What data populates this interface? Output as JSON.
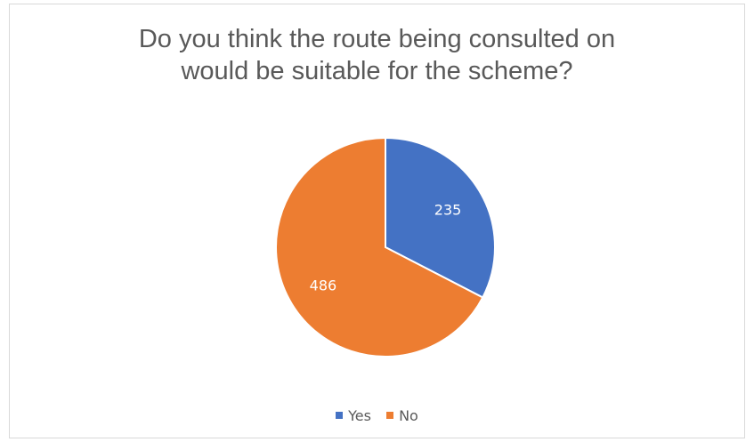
{
  "chart_data": {
    "type": "pie",
    "title": "Do you think the route being consulted on\nwould be suitable for the scheme?",
    "categories": [
      "Yes",
      "No"
    ],
    "values": [
      235,
      486
    ],
    "colors": [
      "#4472c4",
      "#ed7d31"
    ],
    "data_labels": [
      "235",
      "486"
    ],
    "legend_position": "bottom",
    "start_angle": "12 o'clock, clockwise"
  }
}
